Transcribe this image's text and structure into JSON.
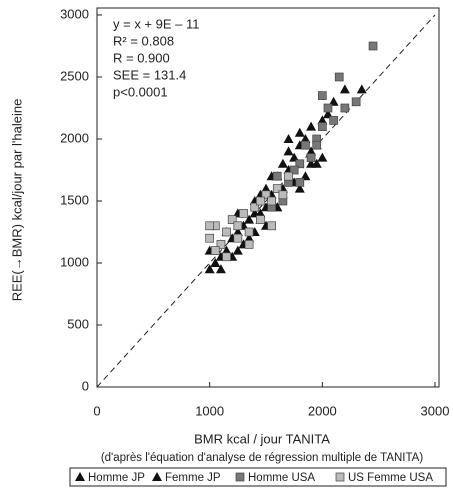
{
  "chart_data": {
    "type": "scatter",
    "xlabel": "BMR kcal / jour TANITA",
    "xlabel_note": "(d'après l'équation d'analyse de régression multiple de TANITA)",
    "ylabel": "REE(→BMR)  kcal/jour   par l'haleine",
    "annotations": [
      "y = x + 9E – 11",
      "R² = 0.808",
      "R = 0.900",
      "SEE = 131.4",
      "p<0.0001"
    ],
    "xlim": [
      0,
      3000
    ],
    "ylim": [
      0,
      3000
    ],
    "xticks": [
      0,
      1000,
      2000,
      3000
    ],
    "yticks": [
      0,
      500,
      1000,
      1500,
      2000,
      2500,
      3000
    ],
    "identity_line": true,
    "series": [
      {
        "name": "Homme JP",
        "color": "#111111",
        "marker": "triangle",
        "x": [
          1400,
          1500,
          1550,
          1600,
          1650,
          1700,
          1700,
          1750,
          1800,
          1800,
          1850,
          1900,
          1900,
          1950,
          2000,
          2050,
          2100,
          2200,
          2350,
          1450,
          1600,
          1650,
          1750,
          1850,
          1550,
          1700,
          1800,
          1900,
          1950,
          2000
        ],
        "values": [
          1500,
          1600,
          1550,
          1700,
          1800,
          1750,
          1900,
          1850,
          1950,
          2050,
          2000,
          2100,
          1800,
          1950,
          2150,
          2200,
          2300,
          2400,
          2400,
          1400,
          1450,
          1600,
          1650,
          1700,
          1700,
          2000,
          1600,
          1900,
          1800,
          1850
        ]
      },
      {
        "name": "Femme JP",
        "color": "#111111",
        "marker": "triangle",
        "x": [
          1000,
          1050,
          1100,
          1100,
          1150,
          1200,
          1200,
          1250,
          1300,
          1300,
          1350,
          1400,
          1400,
          1450,
          1500,
          1500,
          1550,
          1600,
          1000,
          1100,
          1150,
          1250,
          1350,
          1450,
          1250
        ],
        "values": [
          950,
          1000,
          1050,
          1150,
          1100,
          1200,
          1050,
          1250,
          1300,
          1150,
          1350,
          1400,
          1250,
          1350,
          1450,
          1300,
          1500,
          1450,
          1100,
          950,
          1250,
          1100,
          1200,
          1550,
          1400
        ]
      },
      {
        "name": "Homme USA",
        "color": "#777777",
        "marker": "square",
        "x": [
          1500,
          1600,
          1700,
          1800,
          1850,
          1900,
          1950,
          2000,
          2050,
          2100,
          2150,
          2200,
          2300,
          2450,
          1650,
          1750,
          1800,
          1950,
          2000,
          1550
        ],
        "values": [
          1550,
          1700,
          1650,
          1800,
          1950,
          1850,
          2000,
          2350,
          2250,
          2150,
          2500,
          2250,
          2300,
          2750,
          1500,
          1750,
          1650,
          1950,
          2100,
          1450
        ]
      },
      {
        "name": "US Femme USA",
        "color": "#bbbbbb",
        "marker": "square",
        "x": [
          1000,
          1050,
          1100,
          1150,
          1200,
          1250,
          1300,
          1350,
          1400,
          1450,
          1500,
          1550,
          1600,
          1650,
          1700,
          1050,
          1150,
          1250,
          1350,
          1450,
          1550,
          1000
        ],
        "values": [
          1200,
          1300,
          1150,
          1250,
          1350,
          1300,
          1400,
          1250,
          1450,
          1350,
          1550,
          1500,
          1600,
          1550,
          1700,
          1100,
          1050,
          1200,
          1150,
          1500,
          1300,
          1300
        ]
      }
    ]
  }
}
